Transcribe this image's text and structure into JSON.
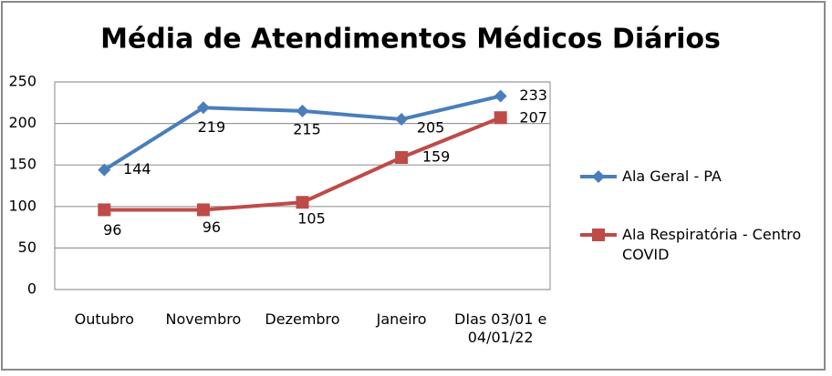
{
  "chart_data": {
    "type": "line",
    "title": "Média de Atendimentos Médicos Diários",
    "categories": [
      "Outubro",
      "Novembro",
      "Dezembro",
      "Janeiro",
      "DIas 03/01 e 04/01/22"
    ],
    "series": [
      {
        "name": "Ala Geral - PA",
        "color": "#4a7ebb",
        "marker": "diamond",
        "values": [
          144,
          219,
          215,
          205,
          233
        ]
      },
      {
        "name": "Ala Respiratória - Centro COVID",
        "color": "#be4b48",
        "marker": "square",
        "values": [
          96,
          96,
          105,
          159,
          207
        ]
      }
    ],
    "ylim": [
      0,
      250
    ],
    "yticks": [
      0,
      50,
      100,
      150,
      200,
      250
    ],
    "grid": true,
    "legend": "right"
  }
}
